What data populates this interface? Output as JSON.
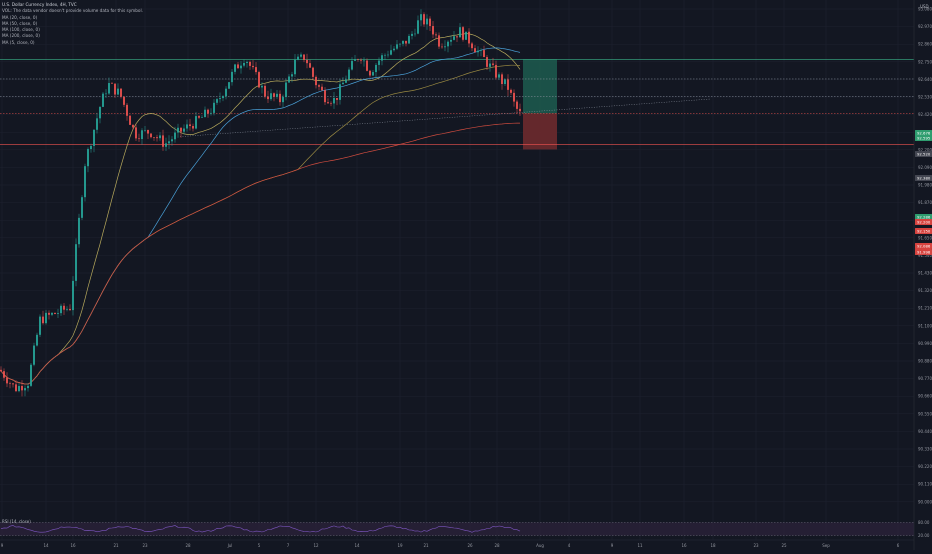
{
  "header": {
    "symbol_line": "U.S. Dollar Currency Index, 4H, TVC",
    "notice_line": "VOL: The data vendor doesn't provide volume data for this symbol.",
    "indicators": [
      "MA (20, close, 0)",
      "MA (50, close, 0)",
      "MA (100, close, 0)",
      "MA (200, close, 0)",
      "MA (5, close, 0)"
    ]
  },
  "top_right": {
    "currency": "USD"
  },
  "rsi": {
    "label": "RSI (14, close)",
    "ticks": [
      "80.00",
      "20.00"
    ]
  },
  "colors": {
    "background": "#131722",
    "grid": "#1f2330",
    "up": "#26a69a",
    "down": "#ef5350",
    "ma20": "#b7a95c",
    "ma50": "#4aa1d8",
    "ma100": "#9a8a42",
    "ma200": "#d04c3f",
    "profit_zone": "#1d5c4f",
    "loss_zone": "#6e2a2d",
    "rsi_line": "#7e57c2",
    "rsi_band": "#2a2239"
  },
  "chart_data": {
    "type": "candlestick",
    "title": "U.S. Dollar Currency Index",
    "y_axis_ticks": [
      "93.080",
      "92.970",
      "92.860",
      "92.750",
      "92.640",
      "92.530",
      "92.420",
      "92.310",
      "92.200",
      "92.090",
      "91.980",
      "91.870",
      "91.760",
      "91.650",
      "91.540",
      "91.430",
      "91.320",
      "91.210",
      "91.100",
      "90.990",
      "90.880",
      "90.770",
      "90.660",
      "90.550",
      "90.440",
      "90.330",
      "90.220",
      "90.110",
      "90.000"
    ],
    "x_axis_ticks": [
      "9",
      "14",
      "16",
      "21",
      "23",
      "28",
      "Jul",
      "5",
      "7",
      "12",
      "14",
      "19",
      "21",
      "26",
      "28",
      "Aug",
      "4",
      "9",
      "11",
      "16",
      "18",
      "23",
      "25",
      "Sep",
      "6"
    ],
    "price_tags": [
      {
        "text": "92.676",
        "kind": "target"
      },
      {
        "text": "92.595",
        "kind": "target"
      },
      {
        "text": "92.520",
        "kind": "level"
      },
      {
        "text": "92.380",
        "kind": "level"
      },
      {
        "text": "92.286",
        "kind": "current"
      },
      {
        "text": "92.200",
        "kind": "stop"
      },
      {
        "text": "92.150",
        "kind": "stop"
      },
      {
        "text": "92.086",
        "kind": "stop"
      },
      {
        "text": "91.998",
        "kind": "stop"
      }
    ],
    "horizontal_levels": [
      "92.676",
      "92.520",
      "92.380",
      "92.245",
      "91.998"
    ],
    "position_tool": {
      "entry": 92.245,
      "target": 92.676,
      "stop": 91.998
    },
    "price_range": [
      89.05,
      93.15
    ],
    "moving_averages": [
      "MA 20",
      "MA 50",
      "MA 100",
      "MA 200"
    ],
    "rsi_range": [
      0,
      100
    ],
    "rsi_levels": [
      80,
      20
    ]
  }
}
